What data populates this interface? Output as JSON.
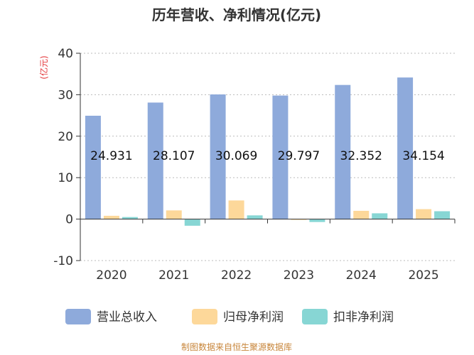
{
  "chart_data": {
    "type": "bar",
    "title": "历年营收、净利情况(亿元)",
    "ylabel": "(亿元)",
    "categories": [
      "2020",
      "2021",
      "2022",
      "2023",
      "2024",
      "2025"
    ],
    "ylim": [
      -10,
      40
    ],
    "yticks": [
      -10,
      0,
      10,
      20,
      30,
      40
    ],
    "series": [
      {
        "name": "营业总收入",
        "color": "#8eaadb",
        "values": [
          24.931,
          28.107,
          30.069,
          29.797,
          32.352,
          34.154
        ],
        "data_labels": [
          "24.931",
          "28.107",
          "30.069",
          "29.797",
          "32.352",
          "34.154"
        ]
      },
      {
        "name": "归母净利润",
        "color": "#fdd89a",
        "values": [
          0.8,
          2.1,
          4.5,
          -0.2,
          2.0,
          2.4
        ]
      },
      {
        "name": "扣非净利润",
        "color": "#87d6d4",
        "values": [
          0.5,
          -1.6,
          0.9,
          -0.7,
          1.4,
          1.9
        ]
      }
    ],
    "grid": true,
    "legend": "bottom"
  },
  "source_text": "制图数据来自恒生聚源数据库"
}
